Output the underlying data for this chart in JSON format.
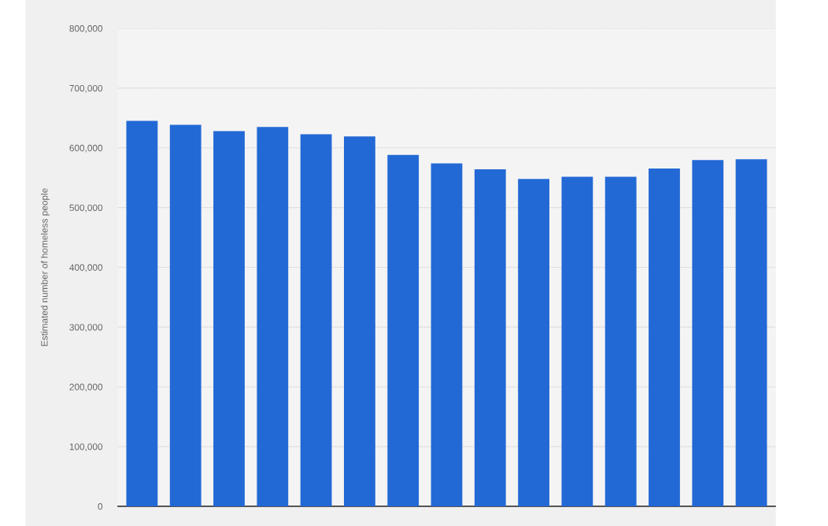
{
  "chart_data": {
    "type": "bar",
    "ylabel": "Estimated number of homeless people",
    "categories": [
      null,
      null,
      null,
      null,
      null,
      null,
      null,
      null,
      null,
      null,
      null,
      null,
      null,
      null,
      null
    ],
    "values": [
      645000,
      638500,
      628000,
      635000,
      622700,
      619000,
      588000,
      574000,
      564000,
      548000,
      551500,
      551500,
      565500,
      579500,
      581000
    ],
    "color": "#2369d6",
    "ylim": [
      0,
      800000
    ],
    "yticks": [
      {
        "value": 0,
        "label": "0"
      },
      {
        "value": 100000,
        "label": "100,000"
      },
      {
        "value": 200000,
        "label": "200,000"
      },
      {
        "value": 300000,
        "label": "300,000"
      },
      {
        "value": 400000,
        "label": "400,000"
      },
      {
        "value": 500000,
        "label": "500,000"
      },
      {
        "value": 600000,
        "label": "600,000"
      },
      {
        "value": 700000,
        "label": "700,000"
      },
      {
        "value": 800000,
        "label": "800,000"
      }
    ],
    "grid": "y",
    "tick_labels": "y"
  }
}
